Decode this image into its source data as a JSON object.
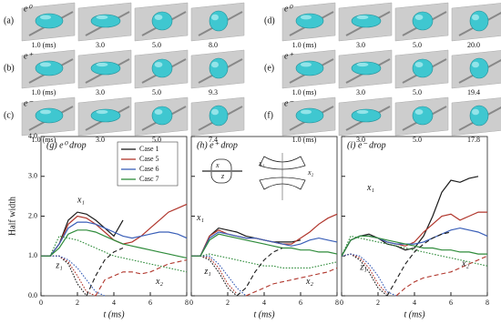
{
  "image_rows": [
    {
      "label": "(a)",
      "drop": "e⁰",
      "times": [
        "1.0 (ms)",
        "3.0",
        "5.0",
        "8.0"
      ]
    },
    {
      "label": "(b)",
      "drop": "e⁺",
      "times": [
        "1.0 (ms)",
        "3.0",
        "5.0",
        "9.3"
      ]
    },
    {
      "label": "(c)",
      "drop": "e⁻",
      "times": [
        "1.0 (ms)",
        "3.0",
        "5.0",
        "7.4"
      ]
    },
    {
      "label": "(d)",
      "drop": "e⁰",
      "times": [
        "1.0 (ms)",
        "3.0",
        "5.0",
        "20.0"
      ]
    },
    {
      "label": "(e)",
      "drop": "e⁺",
      "times": [
        "1.0 (ms)",
        "3.0",
        "5.0",
        "19.4"
      ]
    },
    {
      "label": "(f)",
      "drop": "e⁻",
      "times": [
        "1.0 (ms)",
        "3.0",
        "5.0",
        "17.8"
      ]
    }
  ],
  "chart_data": [
    {
      "type": "line",
      "title": "(g) e⁰ drop",
      "y_label": "Half width",
      "x_label": "t (ms)",
      "x": [
        0,
        0.5,
        1,
        1.5,
        2,
        2.5,
        3,
        3.5,
        4,
        4.5,
        5,
        5.5,
        6,
        6.5,
        7,
        7.5,
        8
      ],
      "xlim": [
        0,
        8
      ],
      "xticks": [
        0,
        2,
        4,
        6,
        8
      ],
      "ylim": [
        0,
        4
      ],
      "yticks": [
        {
          "value": 0,
          "label": "0.0"
        },
        {
          "value": 1,
          "label": "1.0"
        },
        {
          "value": 2,
          "label": "2.0"
        },
        {
          "value": 3,
          "label": "3.0"
        },
        {
          "value": 4,
          "label": "4.0"
        }
      ],
      "annotations": [
        "x₁",
        "z₁",
        "x₂"
      ],
      "series": [
        {
          "name": "Case 1",
          "color": "#1a1a1a",
          "style": "solid",
          "values": [
            1,
            1,
            1.3,
            1.9,
            2.1,
            2.05,
            1.9,
            1.7,
            1.5,
            1.9,
            null,
            null,
            null,
            null,
            null,
            null,
            null
          ]
        },
        {
          "name": "Case 5",
          "color": "#b0352b",
          "style": "solid",
          "values": [
            1,
            1,
            1.3,
            1.8,
            2.0,
            1.95,
            1.8,
            1.6,
            1.4,
            1.3,
            1.35,
            1.5,
            1.7,
            1.9,
            2.1,
            2.2,
            2.3
          ]
        },
        {
          "name": "Case 6",
          "color": "#3a5fb8",
          "style": "solid",
          "values": [
            1,
            1,
            1.3,
            1.7,
            1.85,
            1.85,
            1.8,
            1.7,
            1.6,
            1.5,
            1.45,
            1.5,
            1.55,
            1.6,
            1.6,
            1.55,
            1.45
          ]
        },
        {
          "name": "Casc 7",
          "color": "#2e8b3a",
          "style": "solid",
          "values": [
            1,
            1,
            1.2,
            1.55,
            1.65,
            1.65,
            1.6,
            1.5,
            1.4,
            1.3,
            1.25,
            1.2,
            1.15,
            1.1,
            1.05,
            1.0,
            0.95
          ]
        },
        {
          "color": "#1a1a1a",
          "style": "dotted",
          "values": [
            1,
            1,
            1.0,
            0.8,
            0.3,
            0,
            null,
            null,
            null,
            null,
            null,
            null,
            null,
            null,
            null,
            null,
            null
          ]
        },
        {
          "color": "#b0352b",
          "style": "dotted",
          "values": [
            1,
            1,
            1,
            0.85,
            0.5,
            0.1,
            0,
            null,
            null,
            null,
            null,
            null,
            null,
            null,
            null,
            null,
            null
          ]
        },
        {
          "color": "#3a5fb8",
          "style": "dotted",
          "values": [
            1,
            1,
            1,
            0.9,
            0.7,
            0.4,
            0.1,
            0,
            null,
            null,
            null,
            null,
            null,
            null,
            null,
            null,
            null
          ]
        },
        {
          "color": "#2e8b3a",
          "style": "dotted",
          "values": [
            1,
            1,
            1.5,
            1.45,
            1.4,
            1.3,
            1.2,
            1.1,
            1.0,
            0.95,
            0.9,
            0.85,
            0.8,
            0.75,
            0.7,
            0.65,
            0.6
          ]
        },
        {
          "color": "#1a1a1a",
          "style": "dashed",
          "values": [
            null,
            null,
            null,
            null,
            null,
            0,
            0.5,
            0.9,
            1.1,
            1.2,
            null,
            null,
            null,
            null,
            null,
            null,
            null
          ]
        },
        {
          "color": "#b0352b",
          "style": "dashed",
          "values": [
            null,
            null,
            null,
            null,
            null,
            null,
            0,
            0.4,
            0.5,
            0.6,
            0.6,
            0.55,
            0.6,
            0.7,
            0.8,
            0.85,
            0.9
          ]
        }
      ]
    },
    {
      "type": "line",
      "title": "(h) e⁺ drop",
      "x_label": "t (ms)",
      "x": [
        0,
        0.5,
        1,
        1.5,
        2,
        2.5,
        3,
        3.5,
        4,
        4.5,
        5,
        5.5,
        6,
        6.5,
        7,
        7.5,
        8
      ],
      "xlim": [
        0,
        8
      ],
      "xticks": [
        0,
        2,
        4,
        6,
        8
      ],
      "ylim": [
        0,
        4
      ],
      "yticks": [
        0,
        1,
        2,
        3,
        4
      ],
      "annotations": [
        "x₁",
        "z₁",
        "x₂"
      ],
      "inset_labels": [
        "x",
        "z",
        "x₁",
        "x₂"
      ],
      "series": [
        {
          "color": "#1a1a1a",
          "style": "solid",
          "values": [
            1,
            1,
            1.5,
            1.7,
            1.65,
            1.6,
            1.5,
            1.45,
            1.4,
            1.35,
            1.35,
            1.35,
            1.4,
            null,
            null,
            null,
            null
          ]
        },
        {
          "color": "#b0352b",
          "style": "solid",
          "values": [
            1,
            1,
            1.5,
            1.65,
            1.55,
            1.5,
            1.45,
            1.45,
            1.4,
            1.35,
            1.3,
            1.3,
            1.45,
            1.6,
            1.8,
            1.95,
            2.05
          ]
        },
        {
          "color": "#3a5fb8",
          "style": "solid",
          "values": [
            1,
            1,
            1.45,
            1.6,
            1.55,
            1.5,
            1.45,
            1.45,
            1.4,
            1.35,
            1.3,
            1.25,
            1.3,
            1.4,
            1.45,
            1.4,
            1.35
          ]
        },
        {
          "color": "#2e8b3a",
          "style": "solid",
          "values": [
            1,
            1,
            1.4,
            1.55,
            1.5,
            1.45,
            1.4,
            1.35,
            1.3,
            1.25,
            1.2,
            1.2,
            1.15,
            1.15,
            1.1,
            1.1,
            1.05
          ]
        },
        {
          "color": "#1a1a1a",
          "style": "dotted",
          "values": [
            1,
            1,
            0.9,
            0.6,
            0.2,
            0,
            null,
            null,
            null,
            null,
            null,
            null,
            null,
            null,
            null,
            null,
            null
          ]
        },
        {
          "color": "#b0352b",
          "style": "dotted",
          "values": [
            1,
            1,
            0.95,
            0.7,
            0.3,
            0.05,
            null,
            null,
            null,
            null,
            null,
            null,
            null,
            null,
            null,
            null,
            null
          ]
        },
        {
          "color": "#3a5fb8",
          "style": "dotted",
          "values": [
            1,
            1,
            1,
            0.8,
            0.5,
            0.2,
            0,
            null,
            null,
            null,
            null,
            null,
            null,
            null,
            null,
            null,
            null
          ]
        },
        {
          "color": "#2e8b3a",
          "style": "dotted",
          "values": [
            1,
            1,
            1.05,
            1.0,
            0.95,
            0.9,
            0.85,
            0.8,
            0.75,
            0.75,
            0.7,
            0.7,
            0.7,
            0.7,
            0.75,
            0.8,
            0.85
          ]
        },
        {
          "color": "#1a1a1a",
          "style": "dashed",
          "values": [
            null,
            null,
            null,
            null,
            null,
            0,
            0.2,
            0.6,
            0.9,
            1.1,
            1.2,
            null,
            null,
            null,
            null,
            null,
            null
          ]
        },
        {
          "color": "#b0352b",
          "style": "dashed",
          "values": [
            null,
            null,
            null,
            null,
            null,
            null,
            0,
            0.1,
            0.2,
            0.3,
            0.35,
            0.4,
            0.45,
            0.5,
            0.55,
            0.6,
            0.7
          ]
        }
      ]
    },
    {
      "type": "line",
      "title": "(i) e⁻ drop",
      "x_label": "t (ms)",
      "x": [
        0,
        0.5,
        1,
        1.5,
        2,
        2.5,
        3,
        3.5,
        4,
        4.5,
        5,
        5.5,
        6,
        6.5,
        7,
        7.5,
        8
      ],
      "xlim": [
        0,
        8
      ],
      "xticks": [
        0,
        2,
        4,
        6,
        8
      ],
      "ylim": [
        0,
        4
      ],
      "yticks": [
        0,
        1,
        2,
        3,
        4
      ],
      "annotations": [
        "x₁",
        "z₁",
        "x₂"
      ],
      "series": [
        {
          "color": "#1a1a1a",
          "style": "solid",
          "values": [
            1,
            1.4,
            1.5,
            1.55,
            1.45,
            1.3,
            1.25,
            1.15,
            1.2,
            1.5,
            2.0,
            2.6,
            2.9,
            2.85,
            2.95,
            3.0,
            null
          ]
        },
        {
          "color": "#b0352b",
          "style": "solid",
          "values": [
            1,
            1.4,
            1.5,
            1.5,
            1.45,
            1.35,
            1.3,
            1.25,
            1.35,
            1.6,
            1.8,
            2.0,
            2.05,
            1.9,
            2.0,
            2.1,
            2.1
          ]
        },
        {
          "color": "#3a5fb8",
          "style": "solid",
          "values": [
            1,
            1.4,
            1.5,
            1.5,
            1.45,
            1.35,
            1.3,
            1.3,
            1.3,
            1.35,
            1.45,
            1.55,
            1.65,
            1.7,
            1.65,
            1.6,
            1.5
          ]
        },
        {
          "color": "#2e8b3a",
          "style": "solid",
          "values": [
            1,
            1.4,
            1.5,
            1.5,
            1.45,
            1.4,
            1.35,
            1.3,
            1.25,
            1.2,
            1.2,
            1.15,
            1.15,
            1.1,
            1.1,
            1.05,
            1.05
          ]
        },
        {
          "color": "#1a1a1a",
          "style": "dotted",
          "values": [
            1,
            1.05,
            0.9,
            0.6,
            0.2,
            0,
            null,
            null,
            null,
            null,
            null,
            null,
            null,
            null,
            null,
            null,
            null
          ]
        },
        {
          "color": "#b0352b",
          "style": "dotted",
          "values": [
            1,
            1.05,
            0.95,
            0.7,
            0.3,
            0.05,
            null,
            null,
            null,
            null,
            null,
            null,
            null,
            null,
            null,
            null,
            null
          ]
        },
        {
          "color": "#3a5fb8",
          "style": "dotted",
          "values": [
            1,
            1.05,
            1,
            0.8,
            0.5,
            0.1,
            0,
            null,
            null,
            null,
            null,
            null,
            null,
            null,
            null,
            null,
            null
          ]
        },
        {
          "color": "#2e8b3a",
          "style": "dotted",
          "values": [
            1,
            1.5,
            1.45,
            1.4,
            1.35,
            1.3,
            1.25,
            1.2,
            1.15,
            1.1,
            1.05,
            1,
            0.95,
            0.9,
            0.85,
            0.8,
            0.75
          ]
        },
        {
          "color": "#1a1a1a",
          "style": "dashed",
          "values": [
            null,
            null,
            null,
            null,
            null,
            0,
            0.4,
            0.8,
            1.1,
            1.3,
            1.45,
            1.55,
            1.6,
            null,
            null,
            null,
            null
          ]
        },
        {
          "color": "#b0352b",
          "style": "dashed",
          "values": [
            null,
            null,
            null,
            null,
            null,
            null,
            0,
            0.2,
            0.35,
            0.45,
            0.5,
            0.55,
            0.6,
            0.7,
            0.8,
            0.9,
            1.0
          ]
        }
      ]
    }
  ]
}
